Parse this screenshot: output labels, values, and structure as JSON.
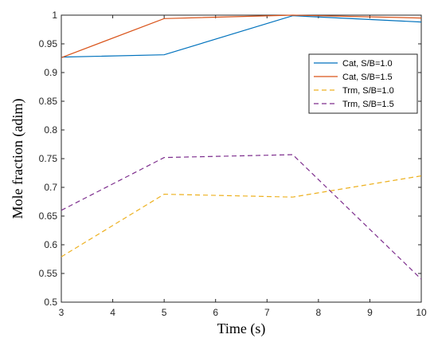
{
  "chart_data": {
    "type": "line",
    "title": "",
    "xlabel": "Time (s)",
    "ylabel": "Mole fraction (adim)",
    "xlim": [
      3,
      10
    ],
    "ylim": [
      0.5,
      1
    ],
    "xticks": [
      3,
      4,
      5,
      6,
      7,
      8,
      9,
      10
    ],
    "yticks": [
      0.5,
      0.55,
      0.6,
      0.65,
      0.7,
      0.75,
      0.8,
      0.85,
      0.9,
      0.95,
      1
    ],
    "ytick_labels": [
      "0.5",
      "0.55",
      "0.6",
      "0.65",
      "0.7",
      "0.75",
      "0.8",
      "0.85",
      "0.9",
      "0.95",
      "1"
    ],
    "grid": false,
    "legend_position": "top-right",
    "x": [
      3,
      5,
      7.5,
      10
    ],
    "series": [
      {
        "name": "Cat, S/B=1.0",
        "values": [
          0.927,
          0.931,
          0.999,
          0.988
        ],
        "color": "#0072BD",
        "style": "solid"
      },
      {
        "name": "Cat, S/B=1.5",
        "values": [
          0.926,
          0.994,
          1.0,
          0.995
        ],
        "color": "#D95319",
        "style": "solid"
      },
      {
        "name": "Trm, S/B=1.0",
        "values": [
          0.579,
          0.688,
          0.683,
          0.72
        ],
        "color": "#EDB120",
        "style": "dashed"
      },
      {
        "name": "Trm, S/B=1.5",
        "values": [
          0.66,
          0.752,
          0.757,
          0.54
        ],
        "color": "#7E2F8E",
        "style": "dashed"
      }
    ]
  }
}
